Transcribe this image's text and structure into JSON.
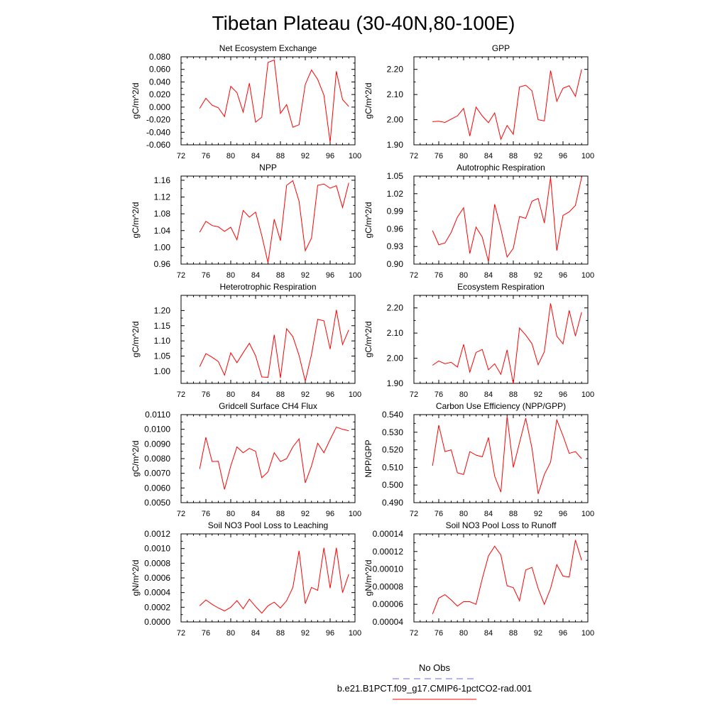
{
  "figure": {
    "title": "Tibetan Plateau (30-40N,80-100E)",
    "legend": [
      {
        "label": "No Obs",
        "color": "#6666ff",
        "dash": true
      },
      {
        "label": "b.e21.B1PCT.f09_g17.CMIP6-1pctCO2-rad.001",
        "color": "#ff0000",
        "dash": false
      }
    ]
  },
  "chart_data": [
    {
      "type": "line",
      "title": "Net Ecosystem Exchange",
      "ylabel": "gC/m^2/d",
      "xlim": [
        72,
        100
      ],
      "xticks": [
        72,
        76,
        80,
        84,
        88,
        92,
        96,
        100
      ],
      "ylim": [
        -0.06,
        0.08
      ],
      "yticks": [
        -0.06,
        -0.04,
        -0.02,
        0.0,
        0.02,
        0.04,
        0.06,
        0.08
      ],
      "ytick_labels": [
        "-0.060",
        "-0.040",
        "-0.020",
        "0.000",
        "0.020",
        "0.040",
        "0.060",
        "0.080"
      ],
      "series": [
        {
          "color": "#ff0000",
          "x": [
            75,
            76,
            77,
            78,
            79,
            80,
            81,
            82,
            83,
            84,
            85,
            86,
            87,
            88,
            89,
            90,
            91,
            92,
            93,
            94,
            95,
            96,
            97,
            98,
            99
          ],
          "y": [
            -0.002,
            0.014,
            0.003,
            -0.001,
            -0.015,
            0.033,
            0.023,
            -0.008,
            0.038,
            -0.024,
            -0.016,
            0.071,
            0.075,
            -0.01,
            0.004,
            -0.032,
            -0.028,
            0.036,
            0.059,
            0.044,
            0.019,
            -0.056,
            0.057,
            0.012,
            0.001
          ]
        }
      ]
    },
    {
      "type": "line",
      "title": "GPP",
      "ylabel": "gC/m^2/d",
      "xlim": [
        72,
        100
      ],
      "xticks": [
        72,
        76,
        80,
        84,
        88,
        92,
        96,
        100
      ],
      "ylim": [
        1.9,
        2.25
      ],
      "yticks": [
        1.9,
        2.0,
        2.1,
        2.2
      ],
      "ytick_labels": [
        "1.90",
        "2.00",
        "2.10",
        "2.20"
      ],
      "series": [
        {
          "color": "#ff0000",
          "x": [
            75,
            76,
            77,
            78,
            79,
            80,
            81,
            82,
            83,
            84,
            85,
            86,
            87,
            88,
            89,
            90,
            91,
            92,
            93,
            94,
            95,
            96,
            97,
            98,
            99
          ],
          "y": [
            1.992,
            1.994,
            1.989,
            2.002,
            2.015,
            2.045,
            1.935,
            2.05,
            2.015,
            1.988,
            2.027,
            1.922,
            1.977,
            1.942,
            2.13,
            2.137,
            2.115,
            2.0,
            1.995,
            2.195,
            2.073,
            2.125,
            2.135,
            2.093,
            2.2
          ]
        }
      ]
    },
    {
      "type": "line",
      "title": "NPP",
      "ylabel": "gC/m^2/d",
      "xlim": [
        72,
        100
      ],
      "xticks": [
        72,
        76,
        80,
        84,
        88,
        92,
        96,
        100
      ],
      "ylim": [
        0.96,
        1.17
      ],
      "yticks": [
        0.96,
        1.0,
        1.04,
        1.08,
        1.12,
        1.16
      ],
      "ytick_labels": [
        "0.96",
        "1.00",
        "1.04",
        "1.08",
        "1.12",
        "1.16"
      ],
      "series": [
        {
          "color": "#ff0000",
          "x": [
            75,
            76,
            77,
            78,
            79,
            80,
            81,
            82,
            83,
            84,
            85,
            86,
            87,
            88,
            89,
            90,
            91,
            92,
            93,
            94,
            95,
            96,
            97,
            98,
            99
          ],
          "y": [
            1.036,
            1.062,
            1.052,
            1.049,
            1.038,
            1.048,
            1.018,
            1.088,
            1.072,
            1.084,
            1.028,
            0.963,
            1.067,
            1.016,
            1.148,
            1.159,
            1.11,
            0.992,
            1.022,
            1.148,
            1.151,
            1.141,
            1.147,
            1.095,
            1.154
          ]
        }
      ]
    },
    {
      "type": "line",
      "title": "Autotrophic Respiration",
      "ylabel": "gC/m^2/d",
      "xlim": [
        72,
        100
      ],
      "xticks": [
        72,
        76,
        80,
        84,
        88,
        92,
        96,
        100
      ],
      "ylim": [
        0.9,
        1.05
      ],
      "yticks": [
        0.9,
        0.93,
        0.96,
        0.99,
        1.02,
        1.05
      ],
      "ytick_labels": [
        "0.90",
        "0.93",
        "0.96",
        "0.99",
        "1.02",
        "1.05"
      ],
      "series": [
        {
          "color": "#ff0000",
          "x": [
            75,
            76,
            77,
            78,
            79,
            80,
            81,
            82,
            83,
            84,
            85,
            86,
            87,
            88,
            89,
            90,
            91,
            92,
            93,
            94,
            95,
            96,
            97,
            98,
            99
          ],
          "y": [
            0.957,
            0.933,
            0.936,
            0.954,
            0.98,
            0.996,
            0.918,
            0.963,
            0.946,
            0.904,
            1.002,
            0.96,
            0.912,
            0.927,
            0.981,
            0.978,
            1.007,
            1.012,
            0.97,
            1.048,
            0.923,
            0.983,
            0.989,
            1.0,
            1.048
          ]
        }
      ]
    },
    {
      "type": "line",
      "title": "Heterotrophic Respiration",
      "ylabel": "gC/m^2/d",
      "xlim": [
        72,
        100
      ],
      "xticks": [
        72,
        76,
        80,
        84,
        88,
        92,
        96,
        100
      ],
      "ylim": [
        0.96,
        1.25
      ],
      "yticks": [
        1.0,
        1.05,
        1.1,
        1.15,
        1.2
      ],
      "ytick_labels": [
        "1.00",
        "1.05",
        "1.10",
        "1.15",
        "1.20"
      ],
      "series": [
        {
          "color": "#ff0000",
          "x": [
            75,
            76,
            77,
            78,
            79,
            80,
            81,
            82,
            83,
            84,
            85,
            86,
            87,
            88,
            89,
            90,
            91,
            92,
            93,
            94,
            95,
            96,
            97,
            98,
            99
          ],
          "y": [
            1.015,
            1.058,
            1.046,
            1.032,
            0.987,
            1.061,
            1.028,
            1.061,
            1.092,
            1.051,
            0.981,
            0.98,
            1.12,
            0.978,
            1.14,
            1.114,
            1.052,
            0.967,
            1.055,
            1.171,
            1.166,
            1.073,
            1.202,
            1.088,
            1.136
          ]
        }
      ]
    },
    {
      "type": "line",
      "title": "Ecosystem Respiration",
      "ylabel": "gC/m^2/d",
      "xlim": [
        72,
        100
      ],
      "xticks": [
        72,
        76,
        80,
        84,
        88,
        92,
        96,
        100
      ],
      "ylim": [
        1.9,
        2.25
      ],
      "yticks": [
        1.9,
        2.0,
        2.1,
        2.2
      ],
      "ytick_labels": [
        "1.90",
        "2.00",
        "2.10",
        "2.20"
      ],
      "series": [
        {
          "color": "#ff0000",
          "x": [
            75,
            76,
            77,
            78,
            79,
            80,
            81,
            82,
            83,
            84,
            85,
            86,
            87,
            88,
            89,
            90,
            91,
            92,
            93,
            94,
            95,
            96,
            97,
            98,
            99
          ],
          "y": [
            1.972,
            1.989,
            1.978,
            1.984,
            1.965,
            2.055,
            1.945,
            2.023,
            2.035,
            1.954,
            1.978,
            1.936,
            2.033,
            1.898,
            2.12,
            2.092,
            2.058,
            1.974,
            2.026,
            2.218,
            2.088,
            2.057,
            2.19,
            2.088,
            2.183
          ]
        }
      ]
    },
    {
      "type": "line",
      "title": "Gridcell Surface CH4 Flux",
      "ylabel": "gC/m^2/d",
      "xlim": [
        72,
        100
      ],
      "xticks": [
        72,
        76,
        80,
        84,
        88,
        92,
        96,
        100
      ],
      "ylim": [
        0.005,
        0.011
      ],
      "yticks": [
        0.005,
        0.006,
        0.007,
        0.008,
        0.009,
        0.01,
        0.011
      ],
      "ytick_labels": [
        "0.0050",
        "0.0060",
        "0.0070",
        "0.0080",
        "0.0090",
        "0.0100",
        "0.0110"
      ],
      "series": [
        {
          "color": "#ff0000",
          "x": [
            75,
            76,
            77,
            78,
            79,
            80,
            81,
            82,
            83,
            84,
            85,
            86,
            87,
            88,
            89,
            90,
            91,
            92,
            93,
            94,
            95,
            96,
            97,
            98,
            99
          ],
          "y": [
            0.0073,
            0.00945,
            0.0078,
            0.00782,
            0.0059,
            0.0075,
            0.0088,
            0.0084,
            0.0087,
            0.0085,
            0.0067,
            0.0071,
            0.0084,
            0.0078,
            0.008,
            0.0088,
            0.00935,
            0.00635,
            0.0075,
            0.00905,
            0.0084,
            0.0093,
            0.01015,
            0.01,
            0.0099
          ]
        }
      ]
    },
    {
      "type": "line",
      "title": "Carbon Use Efficiency (NPP/GPP)",
      "ylabel": "NPP/GPP",
      "xlim": [
        72,
        100
      ],
      "xticks": [
        72,
        76,
        80,
        84,
        88,
        92,
        96,
        100
      ],
      "ylim": [
        0.49,
        0.54
      ],
      "yticks": [
        0.49,
        0.5,
        0.51,
        0.52,
        0.53,
        0.54
      ],
      "ytick_labels": [
        "0.490",
        "0.500",
        "0.510",
        "0.520",
        "0.530",
        "0.540"
      ],
      "series": [
        {
          "color": "#ff0000",
          "x": [
            75,
            76,
            77,
            78,
            79,
            80,
            81,
            82,
            83,
            84,
            85,
            86,
            87,
            88,
            89,
            90,
            91,
            92,
            93,
            94,
            95,
            96,
            97,
            98,
            99
          ],
          "y": [
            0.511,
            0.534,
            0.519,
            0.52,
            0.507,
            0.506,
            0.519,
            0.517,
            0.516,
            0.527,
            0.505,
            0.496,
            0.539,
            0.51,
            0.524,
            0.538,
            0.521,
            0.495,
            0.506,
            0.513,
            0.537,
            0.528,
            0.518,
            0.519,
            0.515
          ]
        }
      ]
    },
    {
      "type": "line",
      "title": "Soil NO3 Pool Loss to Leaching",
      "ylabel": "gN/m^2/d",
      "xlim": [
        72,
        100
      ],
      "xticks": [
        72,
        76,
        80,
        84,
        88,
        92,
        96,
        100
      ],
      "ylim": [
        0.0,
        0.0012
      ],
      "yticks": [
        0.0,
        0.0002,
        0.0004,
        0.0006,
        0.0008,
        0.001,
        0.0012
      ],
      "ytick_labels": [
        "0.0000",
        "0.0002",
        "0.0004",
        "0.0006",
        "0.0008",
        "0.0010",
        "0.0012"
      ],
      "series": [
        {
          "color": "#ff0000",
          "x": [
            75,
            76,
            77,
            78,
            79,
            80,
            81,
            82,
            83,
            84,
            85,
            86,
            87,
            88,
            89,
            90,
            91,
            92,
            93,
            94,
            95,
            96,
            97,
            98,
            99
          ],
          "y": [
            0.00022,
            0.0003,
            0.00024,
            0.00019,
            0.00015,
            0.0002,
            0.00029,
            0.00018,
            0.00031,
            0.00021,
            0.00012,
            0.00022,
            0.00027,
            0.00019,
            0.00029,
            0.00047,
            0.00097,
            0.00025,
            0.00047,
            0.00043,
            0.00101,
            0.00046,
            0.00101,
            0.0004,
            0.00065
          ]
        }
      ]
    },
    {
      "type": "line",
      "title": "Soil NO3 Pool Loss to Runoff",
      "ylabel": "gN/m^2/d",
      "xlim": [
        72,
        100
      ],
      "xticks": [
        72,
        76,
        80,
        84,
        88,
        92,
        96,
        100
      ],
      "ylim": [
        4e-05,
        0.00014
      ],
      "yticks": [
        4e-05,
        6e-05,
        8e-05,
        0.0001,
        0.00012,
        0.00014
      ],
      "ytick_labels": [
        "0.00004",
        "0.00006",
        "0.00008",
        "0.00010",
        "0.00012",
        "0.00014"
      ],
      "series": [
        {
          "color": "#ff0000",
          "x": [
            75,
            76,
            77,
            78,
            79,
            80,
            81,
            82,
            83,
            84,
            85,
            86,
            87,
            88,
            89,
            90,
            91,
            92,
            93,
            94,
            95,
            96,
            97,
            98,
            99
          ],
          "y": [
            4.9e-05,
            6.7e-05,
            7.1e-05,
            6.5e-05,
            5.8e-05,
            6.3e-05,
            6.3e-05,
            6e-05,
            8.9e-05,
            0.000115,
            0.000126,
            0.000116,
            8.1e-05,
            7.9e-05,
            6.4e-05,
            9.9e-05,
            0.000102,
            7.8e-05,
            6e-05,
            7.8e-05,
            0.000105,
            9.2e-05,
            9.1e-05,
            0.000133,
            0.00011
          ]
        }
      ]
    }
  ]
}
